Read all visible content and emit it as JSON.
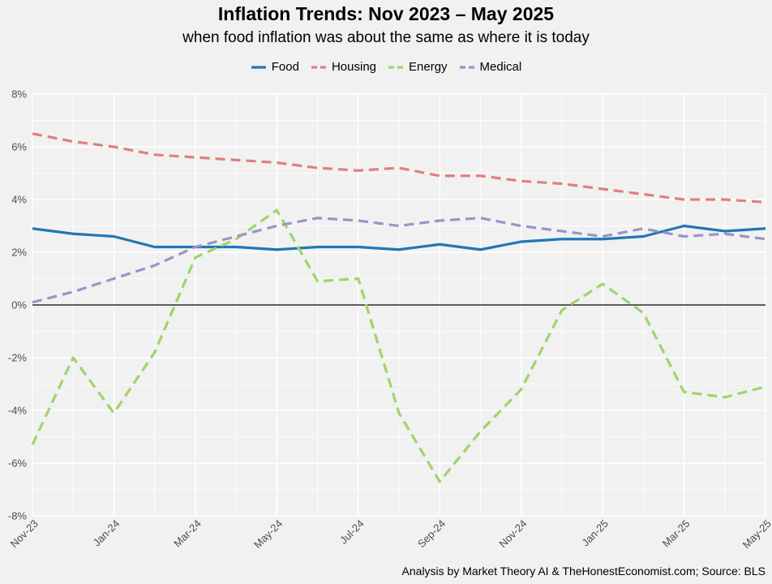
{
  "chart_data": {
    "type": "line",
    "title": "Inflation Trends: Nov 2023 – May 2025",
    "subtitle": "when food inflation was about the same as where it is today",
    "caption": "Analysis by Market Theory AI & TheHonestEconomist.com; Source: BLS",
    "xlabel": "",
    "ylabel": "",
    "ylim": [
      -8,
      8
    ],
    "yticks": [
      -8,
      -6,
      -4,
      -2,
      0,
      2,
      4,
      6,
      8
    ],
    "ytick_labels": [
      "-8%",
      "-6%",
      "-4%",
      "-2%",
      "0%",
      "2%",
      "4%",
      "6%",
      "8%"
    ],
    "x": [
      "Nov-23",
      "Dec-23",
      "Jan-24",
      "Feb-24",
      "Mar-24",
      "Apr-24",
      "May-24",
      "Jun-24",
      "Jul-24",
      "Aug-24",
      "Sep-24",
      "Oct-24",
      "Nov-24",
      "Dec-24",
      "Jan-25",
      "Feb-25",
      "Mar-25",
      "Apr-25",
      "May-25"
    ],
    "xtick_labels": [
      "Nov-23",
      "Jan-24",
      "Mar-24",
      "May-24",
      "Jul-24",
      "Sep-24",
      "Nov-24",
      "Jan-25",
      "Mar-25",
      "May-25"
    ],
    "xtick_index": [
      0,
      2,
      4,
      6,
      8,
      10,
      12,
      14,
      16,
      18
    ],
    "grid": true,
    "legend_position": "top",
    "zero_line": true,
    "series": [
      {
        "name": "Food",
        "color": "#1f78b4",
        "dash": "solid",
        "values": [
          2.9,
          2.7,
          2.6,
          2.2,
          2.2,
          2.2,
          2.1,
          2.2,
          2.2,
          2.1,
          2.3,
          2.1,
          2.4,
          2.5,
          2.5,
          2.6,
          3.0,
          2.8,
          2.9
        ]
      },
      {
        "name": "Housing",
        "color": "#e07f7f",
        "dash": "dashed",
        "values": [
          6.5,
          6.2,
          6.0,
          5.7,
          5.6,
          5.5,
          5.4,
          5.2,
          5.1,
          5.2,
          4.9,
          4.9,
          4.7,
          4.6,
          4.4,
          4.2,
          4.0,
          4.0,
          3.9
        ]
      },
      {
        "name": "Energy",
        "color": "#9fd46b",
        "dash": "dashed",
        "values": [
          -5.3,
          -2.0,
          -4.1,
          -1.8,
          1.8,
          2.5,
          3.6,
          0.9,
          1.0,
          -4.1,
          -6.7,
          -4.8,
          -3.2,
          -0.2,
          0.8,
          -0.3,
          -3.3,
          -3.5,
          -3.1
        ]
      },
      {
        "name": "Medical",
        "color": "#9b93c7",
        "dash": "dashed",
        "values": [
          0.1,
          0.5,
          1.0,
          1.5,
          2.2,
          2.6,
          3.0,
          3.3,
          3.2,
          3.0,
          3.2,
          3.3,
          3.0,
          2.8,
          2.6,
          2.9,
          2.6,
          2.7,
          2.5
        ]
      }
    ]
  }
}
